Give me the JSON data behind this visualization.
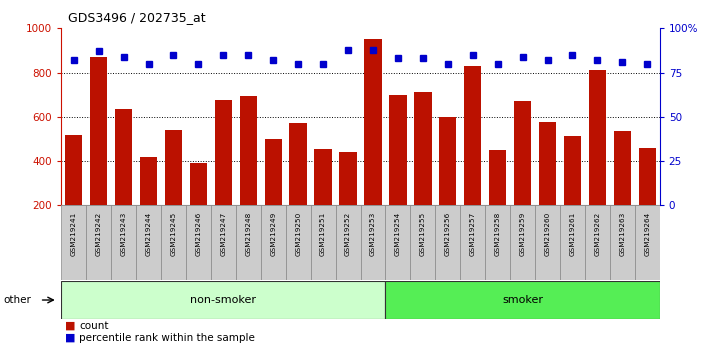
{
  "title": "GDS3496 / 202735_at",
  "samples": [
    "GSM219241",
    "GSM219242",
    "GSM219243",
    "GSM219244",
    "GSM219245",
    "GSM219246",
    "GSM219247",
    "GSM219248",
    "GSM219249",
    "GSM219250",
    "GSM219251",
    "GSM219252",
    "GSM219253",
    "GSM219254",
    "GSM219255",
    "GSM219256",
    "GSM219257",
    "GSM219258",
    "GSM219259",
    "GSM219260",
    "GSM219261",
    "GSM219262",
    "GSM219263",
    "GSM219264"
  ],
  "counts": [
    520,
    870,
    635,
    420,
    540,
    390,
    675,
    695,
    500,
    570,
    455,
    440,
    950,
    700,
    710,
    600,
    830,
    450,
    670,
    575,
    515,
    810,
    535,
    460
  ],
  "percentile_ranks": [
    82,
    87,
    84,
    80,
    85,
    80,
    85,
    85,
    82,
    80,
    80,
    88,
    88,
    83,
    83,
    80,
    85,
    80,
    84,
    82,
    85,
    82,
    81,
    80
  ],
  "bar_color": "#bb1100",
  "dot_color": "#0000cc",
  "left_ylim": [
    200,
    1000
  ],
  "right_ylim": [
    0,
    100
  ],
  "left_yticks": [
    200,
    400,
    600,
    800,
    1000
  ],
  "right_yticks": [
    0,
    25,
    50,
    75,
    100
  ],
  "right_yticklabels": [
    "0",
    "25",
    "50",
    "75",
    "100%"
  ],
  "grid_values": [
    400,
    600,
    800
  ],
  "non_smoker_count": 13,
  "smoker_count": 11,
  "group_label_nonsmoker": "non-smoker",
  "group_label_smoker": "smoker",
  "other_label": "other",
  "legend_count_label": "count",
  "legend_pct_label": "percentile rank within the sample",
  "nonsmoker_color": "#ccffcc",
  "smoker_color": "#55ee55",
  "axis_label_color": "#cc1100",
  "right_axis_color": "#0000cc",
  "tick_box_color": "#cccccc",
  "tick_box_edge": "#888888"
}
